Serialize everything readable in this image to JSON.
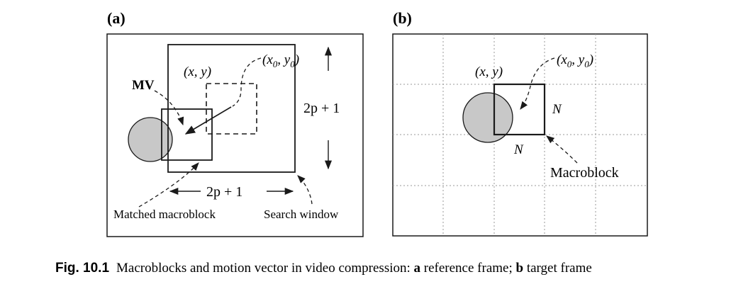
{
  "panel_a": {
    "label": "(a)",
    "mv_label": "MV",
    "xy_label": "(x, y)",
    "x0y0_label": "(x",
    "x0y0_sub0": "0",
    "x0y0_mid": ", y",
    "x0y0_sub1": "0",
    "x0y0_end": ")",
    "vertical_size": "2p + 1",
    "horizontal_size": "2p + 1",
    "matched_label": "Matched macroblock",
    "search_label": "Search window"
  },
  "panel_b": {
    "label": "(b)",
    "xy_label": "(x, y)",
    "x0y0_label": "(x",
    "x0y0_sub0": "0",
    "x0y0_mid": ", y",
    "x0y0_sub1": "0",
    "x0y0_end": ")",
    "n_right": "N",
    "n_bottom": "N",
    "macroblock_label": "Macroblock"
  },
  "caption": {
    "prefix": "Fig. 10.1",
    "text": "Macroblocks and motion vector in video compression: ",
    "a_bold": "a",
    "a_text": " reference frame; ",
    "b_bold": "b",
    "b_text": " target frame"
  },
  "colors": {
    "stroke": "#1a1a1a",
    "object_fill": "#c8c8c8",
    "grid": "#9a9a9a"
  }
}
